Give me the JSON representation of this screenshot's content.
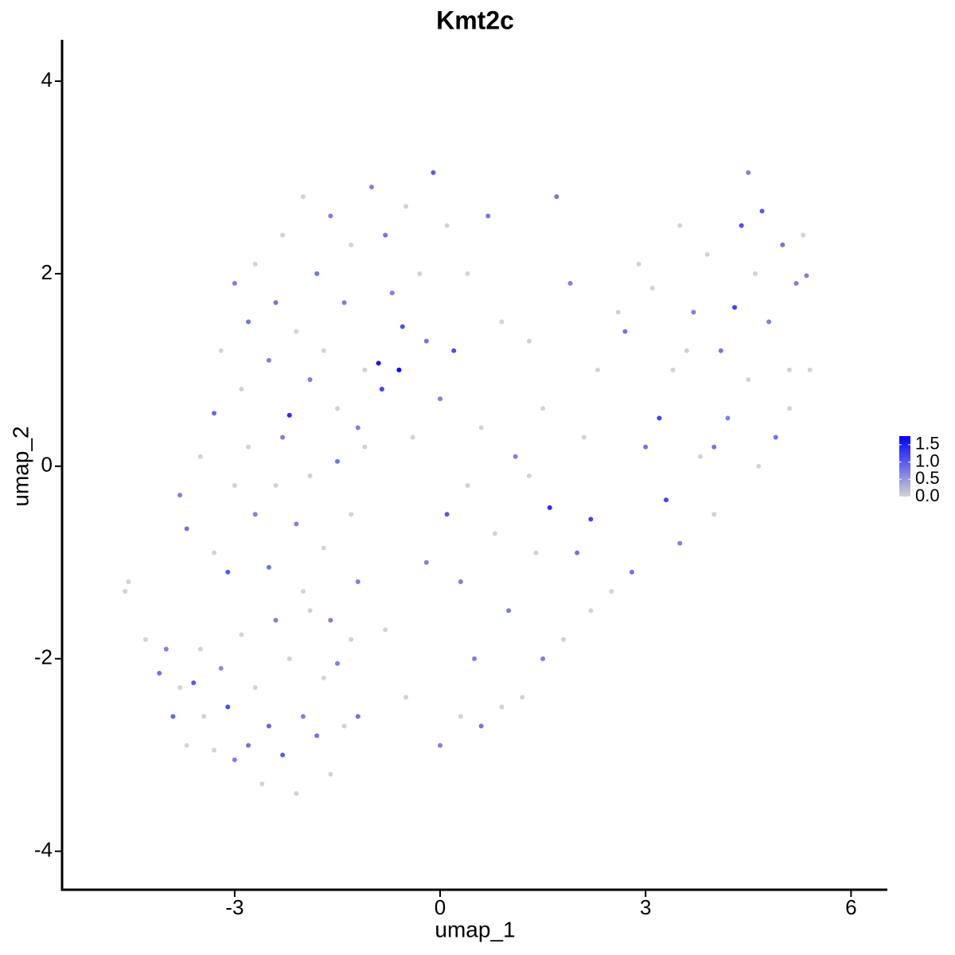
{
  "chart_data": {
    "type": "scatter",
    "title": "Kmt2c",
    "x_label": "umap_1",
    "y_label": "umap_2",
    "x": [
      -4.6,
      -4.55,
      -4.3,
      -4.1,
      -4.0,
      -3.9,
      -3.8,
      -3.7,
      -3.6,
      -3.5,
      -3.45,
      -3.3,
      -3.2,
      -3.1,
      -3.0,
      -2.9,
      -2.8,
      -2.7,
      -2.6,
      -2.5,
      -2.4,
      -2.3,
      -2.2,
      -2.1,
      -2.0,
      -1.9,
      -1.8,
      -1.7,
      -1.6,
      -1.5,
      -1.4,
      -1.3,
      -1.2,
      -3.8,
      -3.7,
      -3.5,
      -3.3,
      -3.1,
      -3.0,
      -2.8,
      -2.7,
      -2.5,
      -2.4,
      -2.3,
      -2.1,
      -2.0,
      -1.9,
      -1.7,
      -1.6,
      -1.5,
      -1.3,
      -1.2,
      -1.1,
      -3.3,
      -3.2,
      -3.0,
      -2.9,
      -2.8,
      -2.7,
      -2.5,
      -2.4,
      -2.3,
      -2.2,
      -2.1,
      -2.0,
      -1.9,
      -1.8,
      -1.7,
      -1.6,
      -1.5,
      -1.4,
      -1.3,
      -1.2,
      -1.1,
      -1.0,
      -0.9,
      -0.85,
      -0.8,
      -0.7,
      -0.6,
      -0.55,
      -0.5,
      -0.4,
      -0.3,
      -0.2,
      -0.1,
      0.0,
      0.1,
      0.1,
      0.2,
      0.3,
      0.4,
      0.5,
      0.6,
      0.7,
      0.8,
      0.9,
      1.0,
      1.1,
      1.2,
      1.3,
      1.4,
      1.5,
      1.6,
      1.7,
      1.8,
      1.9,
      2.0,
      2.2,
      2.3,
      2.5,
      2.6,
      2.8,
      3.0,
      0.0,
      0.3,
      0.6,
      0.9,
      -0.5,
      -0.8,
      -0.2,
      0.4,
      1.3,
      2.1,
      1.5,
      2.2,
      3.2,
      3.3,
      3.4,
      3.5,
      3.5,
      3.7,
      3.8,
      3.9,
      4.0,
      4.1,
      4.2,
      4.3,
      4.4,
      4.5,
      4.5,
      4.6,
      4.7,
      4.8,
      4.9,
      5.0,
      5.1,
      5.2,
      5.3,
      5.35,
      4.65,
      4.0,
      3.6,
      2.9,
      2.7,
      3.1,
      5.4,
      5.1
    ],
    "y": [
      -1.3,
      -1.2,
      -1.8,
      -2.15,
      -1.9,
      -2.6,
      -2.3,
      -2.9,
      -2.25,
      -1.9,
      -2.6,
      -2.95,
      -2.1,
      -2.5,
      -3.05,
      -1.75,
      -2.9,
      -2.3,
      -3.3,
      -2.7,
      -1.6,
      -3.0,
      -2.0,
      -3.4,
      -2.6,
      -1.5,
      -2.8,
      -2.2,
      -3.2,
      -2.05,
      -2.7,
      -1.8,
      -2.6,
      -0.3,
      -0.65,
      0.1,
      -0.9,
      -1.1,
      -0.2,
      0.2,
      -0.5,
      -1.05,
      -0.2,
      0.3,
      -0.6,
      -1.3,
      -0.1,
      -0.85,
      -1.6,
      0.05,
      -0.5,
      -1.2,
      0.2,
      0.55,
      1.2,
      1.9,
      0.8,
      1.5,
      2.1,
      1.1,
      1.7,
      2.4,
      0.53,
      1.4,
      2.8,
      0.9,
      2.0,
      1.2,
      2.6,
      0.6,
      1.7,
      2.3,
      0.4,
      1.0,
      2.9,
      1.07,
      0.8,
      2.4,
      1.8,
      1.0,
      1.45,
      2.7,
      0.3,
      2.0,
      1.3,
      3.05,
      0.7,
      2.5,
      -0.5,
      1.2,
      -1.2,
      2.0,
      -2.0,
      0.4,
      2.6,
      -0.7,
      1.5,
      -1.5,
      0.1,
      -2.4,
      1.3,
      -0.9,
      0.6,
      -0.43,
      2.8,
      -1.8,
      1.9,
      -0.9,
      -0.55,
      1.0,
      -1.3,
      1.6,
      -1.1,
      0.2,
      -2.9,
      -2.6,
      -2.7,
      -2.5,
      -2.4,
      -1.7,
      -1.0,
      -0.2,
      -0.1,
      0.3,
      -2.0,
      -1.5,
      0.5,
      -0.35,
      1.0,
      2.5,
      -0.8,
      1.6,
      0.1,
      2.2,
      -0.5,
      1.2,
      0.5,
      1.65,
      2.5,
      3.05,
      0.9,
      2.0,
      2.65,
      1.5,
      0.3,
      2.3,
      1.0,
      1.9,
      2.4,
      1.98,
      0.0,
      0.2,
      1.2,
      2.1,
      1.4,
      1.85,
      1.0,
      0.6
    ],
    "values": [
      0,
      0,
      0,
      0.8,
      0.7,
      0.9,
      0,
      0,
      1.0,
      0,
      0,
      0,
      0.6,
      1.1,
      0.7,
      0,
      0.8,
      0,
      0,
      0.9,
      0.7,
      1.0,
      0,
      0,
      0.7,
      0,
      0.8,
      0,
      0,
      0.7,
      0,
      0,
      0.8,
      0.7,
      0.8,
      0,
      0,
      1.0,
      0,
      0,
      0.7,
      0.8,
      0,
      0.7,
      0.7,
      0,
      0,
      0,
      0.7,
      0.8,
      0,
      0.7,
      0,
      0.9,
      0,
      0.7,
      0,
      0.8,
      0,
      0.7,
      0.8,
      0,
      1.4,
      0,
      0,
      0.7,
      0.8,
      0,
      0.7,
      0,
      0.7,
      0,
      0.7,
      0,
      0.7,
      1.6,
      1.2,
      0.8,
      0.7,
      1.7,
      1.1,
      0,
      0,
      0,
      0.8,
      1.0,
      0.7,
      0,
      1.0,
      1.1,
      0.7,
      0,
      0.7,
      0,
      0.8,
      0,
      0,
      0.7,
      0.7,
      0,
      0,
      0,
      0,
      1.4,
      0.8,
      0,
      0.7,
      0.8,
      1.2,
      0,
      0,
      0,
      0.8,
      0.8,
      0.7,
      0,
      0.8,
      0,
      0,
      0,
      0.7,
      0,
      0,
      0,
      0.7,
      0,
      1.2,
      1.2,
      0,
      0,
      0.7,
      0.7,
      0,
      0,
      0,
      0.8,
      0.7,
      1.2,
      1.1,
      0.7,
      0,
      0,
      1.0,
      0.7,
      0.8,
      0.8,
      0,
      0.7,
      0,
      0.7,
      0,
      0.8,
      0,
      0,
      0.8,
      0,
      0,
      0
    ],
    "colors": [
      "#d3d3d3",
      "#0000ff"
    ],
    "colorlim": [
      0,
      1.75
    ],
    "colorbar_ticks": [
      {
        "value": 0,
        "label": "0.0"
      },
      {
        "value": 0.5,
        "label": "0.5"
      },
      {
        "value": 1,
        "label": "1.0"
      },
      {
        "value": 1.5,
        "label": "1.5"
      }
    ],
    "xlim": [
      -5.52,
      6.53
    ],
    "ylim": [
      -4.4,
      4.43
    ],
    "xticks": [
      -3,
      0,
      3,
      6
    ],
    "yticks": [
      -4,
      -2,
      0,
      2,
      4
    ]
  }
}
